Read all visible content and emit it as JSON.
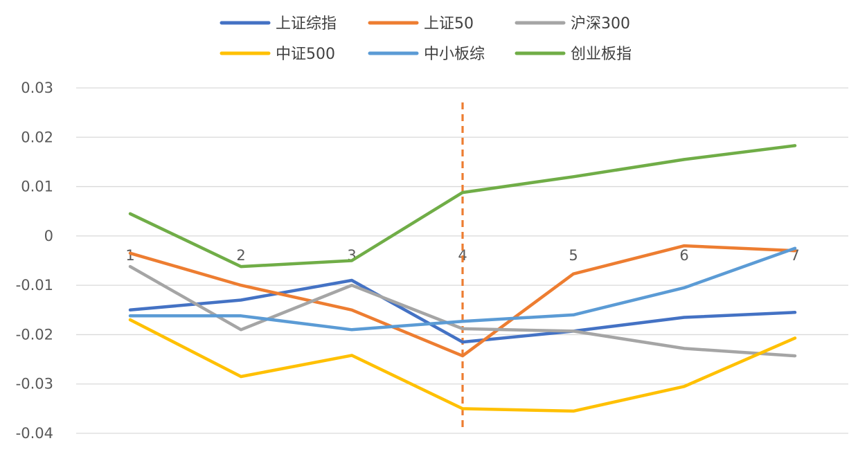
{
  "chart_data": {
    "type": "line",
    "title": "",
    "xlabel": "",
    "ylabel": "",
    "x": [
      1,
      2,
      3,
      4,
      5,
      6,
      7
    ],
    "x_tick_labels": [
      "1",
      "2",
      "3",
      "4",
      "5",
      "6",
      "7"
    ],
    "ylim": [
      -0.04,
      0.03
    ],
    "y_ticks": [
      0.03,
      0.02,
      0.01,
      0,
      -0.01,
      -0.02,
      -0.03,
      -0.04
    ],
    "y_tick_labels": [
      "0.03",
      "0.02",
      "0.01",
      "0",
      "-0.01",
      "-0.02",
      "-0.03",
      "-0.04"
    ],
    "grid": true,
    "legend_position": "top",
    "vertical_marker": {
      "x": 4,
      "color": "#ED7D31",
      "style": "dashed"
    },
    "series": [
      {
        "name": "上证综指",
        "color": "#4472C4",
        "values": [
          -0.015,
          -0.013,
          -0.009,
          -0.0215,
          -0.0193,
          -0.0165,
          -0.0155
        ]
      },
      {
        "name": "上证50",
        "color": "#ED7D31",
        "values": [
          -0.0035,
          -0.01,
          -0.015,
          -0.0243,
          -0.0077,
          -0.002,
          -0.003
        ]
      },
      {
        "name": "沪深300",
        "color": "#A5A5A5",
        "values": [
          -0.0062,
          -0.019,
          -0.01,
          -0.0188,
          -0.0193,
          -0.0228,
          -0.0243
        ]
      },
      {
        "name": "中证500",
        "color": "#FFC000",
        "values": [
          -0.017,
          -0.0285,
          -0.0242,
          -0.035,
          -0.0355,
          -0.0305,
          -0.0207
        ]
      },
      {
        "name": "中小板综",
        "color": "#5B9BD5",
        "values": [
          -0.0162,
          -0.0162,
          -0.019,
          -0.0173,
          -0.016,
          -0.0105,
          -0.0025
        ]
      },
      {
        "name": "创业板指",
        "color": "#70AD47",
        "values": [
          0.0045,
          -0.0062,
          -0.005,
          0.0088,
          0.012,
          0.0155,
          0.0183
        ]
      }
    ]
  }
}
